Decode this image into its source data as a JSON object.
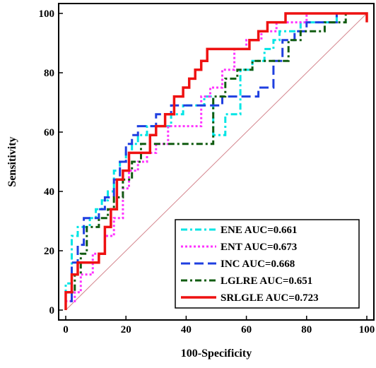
{
  "chart_data": {
    "type": "line",
    "title": "",
    "xlabel": "100-Specificity",
    "ylabel": "Sensitivity",
    "xlim": [
      0,
      100
    ],
    "ylim": [
      0,
      100
    ],
    "xticks": [
      0,
      20,
      40,
      60,
      80,
      100
    ],
    "yticks": [
      0,
      20,
      40,
      60,
      80,
      100
    ],
    "grid": false,
    "legend_position": "bottom-right",
    "reference_line": {
      "from": [
        0,
        0
      ],
      "to": [
        100,
        100
      ],
      "color": "#d4858d"
    },
    "series": [
      {
        "name": "ENE AUC=0.661",
        "color": "#00e5e5",
        "dash": "dashdot",
        "x": [
          0,
          0,
          2,
          2,
          4,
          4,
          6,
          6,
          8,
          8,
          10,
          10,
          12,
          12,
          14,
          14,
          16,
          16,
          18,
          18,
          20,
          20,
          22,
          22,
          24,
          24,
          27,
          27,
          31,
          31,
          35,
          35,
          39,
          39,
          46,
          46,
          49,
          49,
          53,
          53,
          58,
          58,
          62,
          62,
          66,
          66,
          69,
          69,
          71,
          71,
          78,
          78,
          86,
          86,
          90,
          90,
          95,
          95,
          100
        ],
        "y": [
          0,
          9,
          9,
          25,
          25,
          28,
          28,
          28,
          28,
          31,
          31,
          34,
          34,
          37,
          37,
          40,
          40,
          47,
          47,
          50,
          50,
          53,
          53,
          56,
          56,
          59,
          59,
          62,
          62,
          62,
          62,
          66,
          66,
          69,
          69,
          72,
          72,
          59,
          59,
          66,
          66,
          81,
          81,
          84,
          84,
          88,
          88,
          91,
          91,
          94,
          94,
          97,
          97,
          97,
          97,
          100,
          100,
          100,
          100
        ]
      },
      {
        "name": "ENT AUC=0.673",
        "color": "#ff33ff",
        "dash": "dotted",
        "x": [
          0,
          0,
          3,
          3,
          5,
          5,
          9,
          9,
          13,
          13,
          16,
          16,
          19,
          19,
          21,
          21,
          24,
          24,
          27,
          27,
          30,
          30,
          34,
          34,
          45,
          45,
          48,
          48,
          52,
          52,
          56,
          56,
          60,
          60,
          65,
          65,
          70,
          70,
          80,
          80,
          100
        ],
        "y": [
          0,
          3,
          3,
          6,
          6,
          12,
          12,
          19,
          19,
          25,
          25,
          31,
          31,
          41,
          41,
          47,
          47,
          50,
          50,
          53,
          53,
          56,
          56,
          62,
          62,
          72,
          72,
          75,
          75,
          81,
          81,
          88,
          88,
          91,
          91,
          94,
          94,
          97,
          97,
          100,
          100
        ]
      },
      {
        "name": "INC AUC=0.668",
        "color": "#1f3fe0",
        "dash": "dashed",
        "x": [
          0,
          0,
          2,
          2,
          4,
          4,
          6,
          6,
          8,
          8,
          11,
          11,
          13,
          13,
          16,
          16,
          18,
          18,
          20,
          20,
          22,
          22,
          24,
          24,
          26,
          26,
          30,
          30,
          35,
          35,
          42,
          42,
          52,
          52,
          64,
          64,
          69,
          69,
          72,
          72,
          76,
          76,
          80,
          80,
          84,
          84,
          90,
          90,
          95,
          95,
          100
        ],
        "y": [
          0,
          3,
          3,
          16,
          16,
          22,
          22,
          31,
          31,
          31,
          31,
          34,
          34,
          38,
          38,
          44,
          44,
          50,
          50,
          56,
          56,
          59,
          59,
          62,
          62,
          62,
          62,
          66,
          66,
          69,
          69,
          69,
          69,
          72,
          72,
          75,
          75,
          84,
          84,
          91,
          91,
          94,
          94,
          97,
          97,
          97,
          97,
          100,
          100,
          100,
          100
        ]
      },
      {
        "name": "LGLRE AUC=0.651",
        "color": "#115c11",
        "dash": "dashdot",
        "x": [
          0,
          0,
          3,
          3,
          5,
          5,
          7,
          7,
          11,
          11,
          14,
          14,
          16,
          16,
          19,
          19,
          22,
          22,
          25,
          25,
          28,
          28,
          33,
          33,
          40,
          40,
          49,
          49,
          53,
          53,
          57,
          57,
          62,
          62,
          74,
          74,
          78,
          78,
          86,
          86,
          93,
          93,
          100
        ],
        "y": [
          0,
          6,
          6,
          12,
          12,
          19,
          19,
          28,
          28,
          31,
          31,
          34,
          34,
          38,
          38,
          44,
          44,
          50,
          50,
          56,
          56,
          56,
          56,
          56,
          56,
          56,
          56,
          72,
          72,
          78,
          78,
          81,
          81,
          84,
          84,
          91,
          91,
          94,
          94,
          97,
          97,
          100,
          100
        ]
      },
      {
        "name": "SRLGLE AUC=0.723",
        "color": "#ee1111",
        "dash": "solid",
        "x": [
          0,
          0,
          2,
          2,
          4,
          4,
          6,
          6,
          11,
          11,
          13,
          13,
          15,
          15,
          17,
          17,
          19,
          19,
          21,
          21,
          25,
          25,
          28,
          28,
          30,
          30,
          33,
          33,
          36,
          36,
          39,
          39,
          41,
          41,
          43,
          43,
          45,
          45,
          47,
          47,
          61,
          61,
          64,
          64,
          67,
          67,
          69,
          69,
          73,
          73,
          100,
          100
        ],
        "y": [
          0,
          6,
          6,
          12,
          12,
          16,
          16,
          16,
          16,
          19,
          19,
          28,
          28,
          34,
          34,
          44,
          44,
          47,
          47,
          53,
          53,
          53,
          53,
          59,
          59,
          62,
          62,
          66,
          66,
          72,
          72,
          75,
          75,
          78,
          78,
          81,
          81,
          84,
          84,
          88,
          88,
          91,
          91,
          94,
          94,
          97,
          97,
          97,
          97,
          100,
          100,
          97
        ]
      }
    ]
  }
}
